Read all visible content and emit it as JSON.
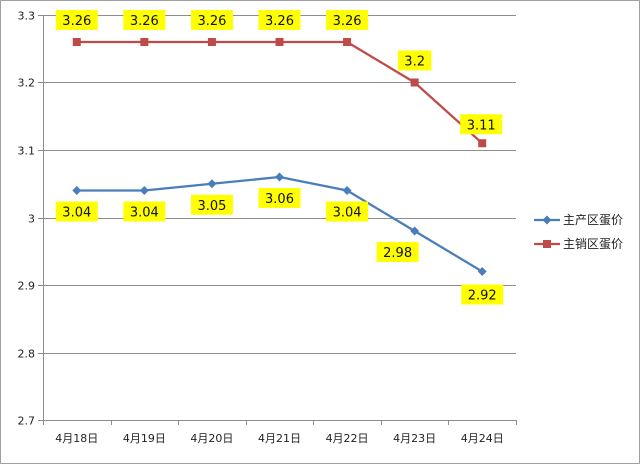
{
  "chart_data": {
    "type": "line",
    "categories": [
      "4月18日",
      "4月19日",
      "4月20日",
      "4月21日",
      "4月22日",
      "4月23日",
      "4月24日"
    ],
    "series": [
      {
        "name": "主产区蛋价",
        "values": [
          3.04,
          3.04,
          3.05,
          3.06,
          3.04,
          2.98,
          2.92
        ],
        "color": "#4a7ebb",
        "marker": "diamond"
      },
      {
        "name": "主销区蛋价",
        "values": [
          3.26,
          3.26,
          3.26,
          3.26,
          3.26,
          3.2,
          3.11
        ],
        "color": "#be4b48",
        "marker": "square"
      }
    ],
    "ylim": [
      2.7,
      3.3
    ],
    "yticks": [
      "2.7",
      "2.8",
      "2.9",
      "3",
      "3.1",
      "3.2",
      "3.3"
    ],
    "grid": true,
    "legend_position": "right",
    "data_label_bg": "#ffff00",
    "data_labels": {
      "主产区蛋价": [
        "3.04",
        "3.04",
        "3.05",
        "3.06",
        "3.04",
        "2.98",
        "2.92"
      ],
      "主销区蛋价": [
        "3.26",
        "3.26",
        "3.26",
        "3.26",
        "3.26",
        "3.2",
        "3.11"
      ]
    }
  }
}
